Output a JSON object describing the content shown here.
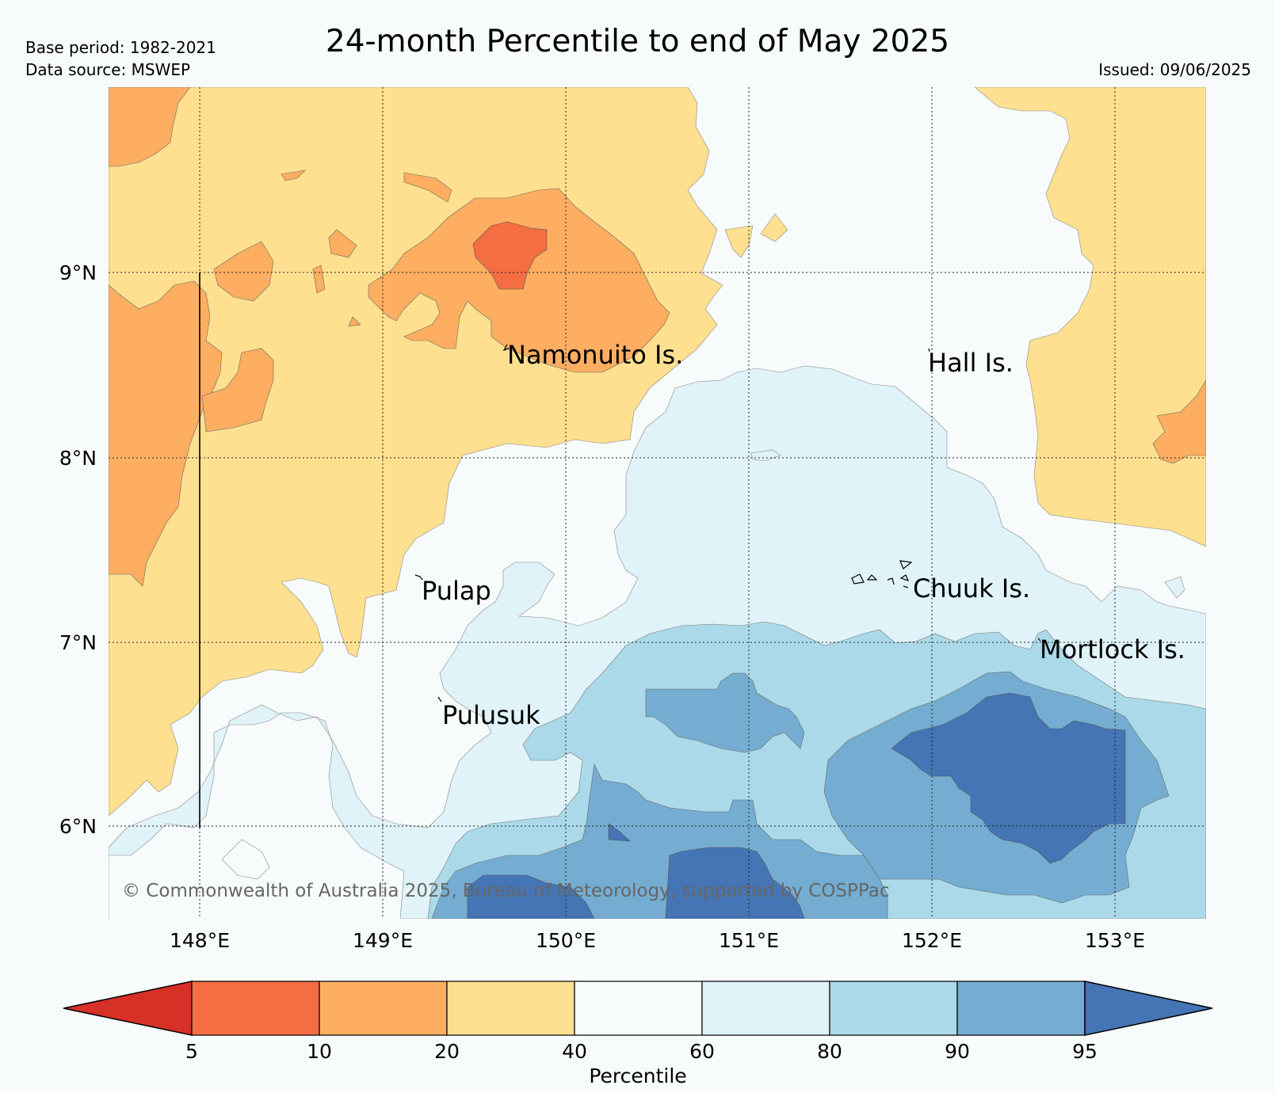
{
  "header": {
    "title": "24-month Percentile to end of May 2025",
    "base_period": "Base period: 1982-2021",
    "data_source": "Data source: MSWEP",
    "issued": "Issued: 09/06/2025"
  },
  "map": {
    "lon_labels": [
      "148°E",
      "149°E",
      "150°E",
      "151°E",
      "152°E",
      "153°E"
    ],
    "lat_labels": [
      "9°N",
      "8°N",
      "7°N",
      "6°N"
    ],
    "places": [
      "Namonuito Is.",
      "Hall Is.",
      "Pulap",
      "Chuuk Is.",
      "Mortlock Is.",
      "Pulusuk"
    ],
    "copyright": "© Commonwealth of Australia 2025, Bureau of Meteorology, supported by COSPPac"
  },
  "colorbar": {
    "label": "Percentile",
    "ticks": [
      "5",
      "10",
      "20",
      "40",
      "60",
      "80",
      "90",
      "95"
    ],
    "colors": {
      "lt5": "#d73027",
      "p5_10": "#f46d43",
      "p10_20": "#fdae61",
      "p20_40": "#fee090",
      "p40_60": "#f7fbfc",
      "p60_80": "#e0f3f8",
      "p80_90": "#abd9e9",
      "p90_95": "#74add1",
      "gt95": "#4575b4"
    }
  }
}
